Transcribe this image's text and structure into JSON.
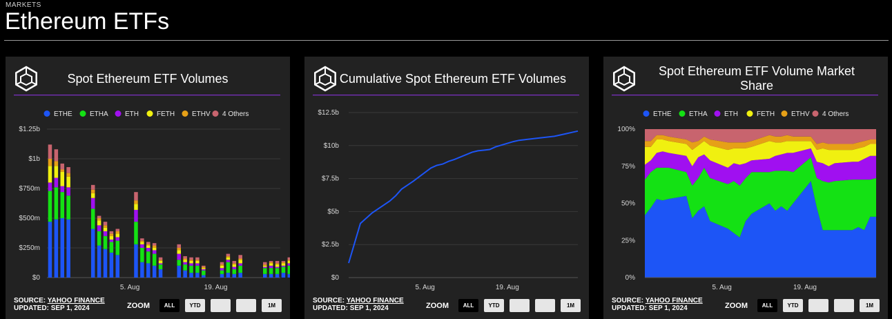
{
  "header": {
    "eyebrow": "MARKETS",
    "title": "Ethereum ETFs"
  },
  "colors": {
    "ETHE": "#1d55f6",
    "ETHA": "#14e114",
    "ETH": "#a010f0",
    "FETH": "#f0f010",
    "ETHV": "#e6a017",
    "4 Others": "#c8646e",
    "accent": "#7a2fbf"
  },
  "legend": [
    "ETHE",
    "ETHA",
    "ETH",
    "FETH",
    "ETHV",
    "4 Others"
  ],
  "footer": {
    "source_prefix": "SOURCE: ",
    "source_link": "YAHOO FINANCE",
    "updated": "UPDATED: SEP 1, 2024",
    "zoom_label": "ZOOM"
  },
  "zoom_buttons": [
    "ALL",
    "YTD",
    "",
    "",
    "1M"
  ],
  "chart_data": [
    {
      "type": "bar",
      "stacked": true,
      "title": "Spot Ethereum ETF Volumes",
      "xlabel": "",
      "ylabel": "",
      "ylim": [
        0,
        1.25
      ],
      "y_ticks": [
        0,
        0.25,
        0.5,
        0.75,
        1.0,
        1.25
      ],
      "y_tick_labels": [
        "$0",
        "$250m",
        "$500m",
        "$750m",
        "$1b",
        "$1.25b"
      ],
      "x_ticks": [
        {
          "x": 13,
          "label": "5. Aug"
        },
        {
          "x": 27,
          "label": "19. Aug"
        }
      ],
      "x_range": [
        -0.5,
        37.5
      ],
      "dates": [
        0,
        1,
        2,
        3,
        7,
        8,
        9,
        10,
        11,
        14,
        15,
        16,
        17,
        18,
        21,
        22,
        23,
        24,
        25,
        28,
        29,
        30,
        31,
        35,
        36,
        37,
        38,
        39
      ],
      "series": [
        {
          "name": "ETHE",
          "values": [
            0.47,
            0.49,
            0.5,
            0.49,
            0.41,
            0.27,
            0.24,
            0.21,
            0.19,
            0.28,
            0.13,
            0.12,
            0.1,
            0.07,
            0.1,
            0.06,
            0.04,
            0.04,
            0.02,
            0.03,
            0.04,
            0.03,
            0.04,
            0.03,
            0.03,
            0.03,
            0.04,
            0.03
          ]
        },
        {
          "name": "ETHA",
          "values": [
            0.26,
            0.27,
            0.22,
            0.2,
            0.17,
            0.12,
            0.11,
            0.09,
            0.12,
            0.19,
            0.12,
            0.1,
            0.1,
            0.04,
            0.05,
            0.05,
            0.06,
            0.06,
            0.04,
            0.03,
            0.09,
            0.04,
            0.06,
            0.05,
            0.05,
            0.05,
            0.05,
            0.07
          ]
        },
        {
          "name": "ETH",
          "values": [
            0.07,
            0.08,
            0.05,
            0.07,
            0.09,
            0.05,
            0.04,
            0.02,
            0.03,
            0.1,
            0.03,
            0.03,
            0.03,
            0.01,
            0.05,
            0.02,
            0.02,
            0.02,
            0.01,
            0.02,
            0.02,
            0.02,
            0.02,
            0.01,
            0.02,
            0.01,
            0.01,
            0.02
          ]
        },
        {
          "name": "FETH",
          "values": [
            0.14,
            0.1,
            0.12,
            0.09,
            0.04,
            0.04,
            0.03,
            0.03,
            0.03,
            0.05,
            0.02,
            0.02,
            0.02,
            0.02,
            0.03,
            0.02,
            0.02,
            0.02,
            0.01,
            0.02,
            0.02,
            0.02,
            0.03,
            0.01,
            0.02,
            0.02,
            0.02,
            0.02
          ]
        },
        {
          "name": "ETHV",
          "values": [
            0.06,
            0.04,
            0.02,
            0.03,
            0.03,
            0.02,
            0.02,
            0.02,
            0.02,
            0.03,
            0.01,
            0.01,
            0.02,
            0.01,
            0.02,
            0.01,
            0.01,
            0.01,
            0.01,
            0.01,
            0.01,
            0.01,
            0.01,
            0.01,
            0.01,
            0.01,
            0.01,
            0.01
          ]
        },
        {
          "name": "4 Others",
          "values": [
            0.12,
            0.1,
            0.05,
            0.05,
            0.04,
            0.02,
            0.03,
            0.02,
            0.02,
            0.07,
            0.02,
            0.02,
            0.02,
            0.02,
            0.03,
            0.02,
            0.02,
            0.02,
            0.01,
            0.02,
            0.02,
            0.02,
            0.03,
            0.02,
            0.01,
            0.02,
            0.01,
            0.02
          ]
        }
      ]
    },
    {
      "type": "line",
      "title": "Cumulative Spot Ethereum ETF Volumes",
      "ylim": [
        0,
        12.5
      ],
      "y_ticks": [
        0,
        2.5,
        5,
        7.5,
        10,
        12.5
      ],
      "y_tick_labels": [
        "$0",
        "$2.5b",
        "$5b",
        "$7.5b",
        "$10b",
        "$12.5b"
      ],
      "x_ticks": [
        {
          "x": 13,
          "label": "5. Aug"
        },
        {
          "x": 27,
          "label": "19. Aug"
        }
      ],
      "x_range": [
        0,
        39
      ],
      "x": [
        0,
        1,
        2,
        3,
        4,
        7,
        8,
        9,
        10,
        11,
        14,
        15,
        16,
        17,
        18,
        21,
        22,
        23,
        24,
        25,
        28,
        29,
        30,
        31,
        32,
        35,
        36,
        37,
        38,
        39
      ],
      "y": [
        1.1,
        2.6,
        4.1,
        4.5,
        4.9,
        5.8,
        6.2,
        6.7,
        7.0,
        7.3,
        8.3,
        8.5,
        8.6,
        8.8,
        8.95,
        9.5,
        9.6,
        9.65,
        9.7,
        9.9,
        10.3,
        10.4,
        10.45,
        10.5,
        10.55,
        10.7,
        10.8,
        10.9,
        11.0,
        11.1
      ]
    },
    {
      "type": "area",
      "stacked": true,
      "normalized": true,
      "title": "Spot Ethereum ETF Volume Market Share",
      "ylim": [
        0,
        100
      ],
      "y_ticks": [
        0,
        25,
        50,
        75,
        100
      ],
      "y_tick_labels": [
        "0%",
        "25%",
        "50%",
        "75%",
        "100%"
      ],
      "x_ticks": [
        {
          "x": 13,
          "label": "5. Aug"
        },
        {
          "x": 27,
          "label": "19. Aug"
        }
      ],
      "x_range": [
        0,
        39
      ],
      "x": [
        0,
        1,
        2,
        3,
        4,
        7,
        8,
        9,
        10,
        11,
        14,
        15,
        16,
        17,
        18,
        21,
        22,
        23,
        24,
        25,
        28,
        29,
        30,
        31,
        32,
        35,
        36,
        37,
        38,
        39
      ],
      "series": [
        {
          "name": "ETHE",
          "values": [
            42,
            47,
            53,
            52,
            53,
            55,
            40,
            45,
            48,
            38,
            33,
            30,
            27,
            38,
            43,
            50,
            45,
            48,
            45,
            50,
            65,
            47,
            32,
            32,
            32,
            32,
            34,
            32,
            41,
            41
          ]
        },
        {
          "name": "ETHA",
          "values": [
            24,
            24,
            21,
            22,
            21,
            16,
            22,
            22,
            26,
            29,
            30,
            35,
            35,
            29,
            28,
            21,
            27,
            24,
            27,
            21,
            16,
            20,
            33,
            32,
            33,
            34,
            32,
            34,
            25,
            26
          ]
        },
        {
          "name": "ETH",
          "values": [
            10,
            8,
            10,
            11,
            10,
            11,
            13,
            14,
            9,
            12,
            11,
            12,
            14,
            10,
            8,
            9,
            10,
            11,
            12,
            13,
            6,
            11,
            12,
            11,
            12,
            12,
            12,
            14,
            16,
            15
          ]
        },
        {
          "name": "FETH",
          "values": [
            12,
            9,
            9,
            8,
            8,
            8,
            11,
            8,
            9,
            10,
            12,
            10,
            11,
            10,
            9,
            12,
            9,
            8,
            8,
            8,
            5,
            8,
            10,
            11,
            9,
            8,
            9,
            8,
            8,
            8
          ]
        },
        {
          "name": "ETHV",
          "values": [
            4,
            4,
            3,
            3,
            3,
            3,
            5,
            3,
            3,
            4,
            5,
            4,
            4,
            4,
            4,
            4,
            4,
            4,
            4,
            3,
            3,
            4,
            4,
            4,
            4,
            4,
            4,
            4,
            3,
            3
          ]
        },
        {
          "name": "4 Others",
          "values": [
            8,
            8,
            4,
            4,
            5,
            7,
            9,
            8,
            5,
            7,
            9,
            9,
            9,
            9,
            8,
            4,
            5,
            5,
            4,
            5,
            5,
            10,
            9,
            10,
            10,
            10,
            9,
            8,
            7,
            7
          ]
        }
      ]
    }
  ]
}
